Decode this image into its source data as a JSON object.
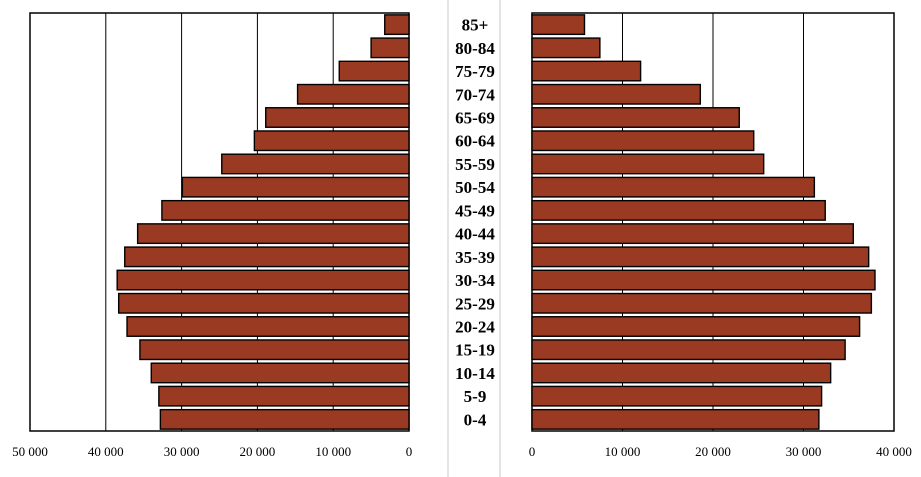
{
  "chart_data": {
    "type": "bar",
    "orientation": "horizontal",
    "title": "",
    "categories": [
      "0-4",
      "5-9",
      "10-14",
      "15-19",
      "20-24",
      "25-29",
      "30-34",
      "35-39",
      "40-44",
      "45-49",
      "50-54",
      "55-59",
      "60-64",
      "65-69",
      "70-74",
      "75-79",
      "80-84",
      "85+"
    ],
    "series": [
      {
        "values": [
          32800,
          33000,
          34000,
          35500,
          37200,
          38300,
          38500,
          37500,
          35800,
          32600,
          29900,
          24700,
          20400,
          18900,
          14700,
          9200,
          5000,
          3200
        ]
      },
      {
        "values": [
          31700,
          32000,
          33000,
          34600,
          36200,
          37500,
          37900,
          37200,
          35500,
          32400,
          31200,
          25600,
          24500,
          22900,
          18600,
          12000,
          7500,
          5800
        ]
      }
    ],
    "left_axis": {
      "ticks": [
        "50 000",
        "40 000",
        "30 000",
        "20 000",
        "10 000",
        "0"
      ],
      "range": [
        50000,
        0
      ],
      "grid": true
    },
    "right_axis": {
      "ticks": [
        "0",
        "10 000",
        "20 000",
        "30 000",
        "40 000"
      ],
      "range": [
        0,
        40000
      ],
      "grid": true
    },
    "bar_color": "#9a3a22",
    "bar_edge_color": "#000000",
    "legend": "none"
  }
}
